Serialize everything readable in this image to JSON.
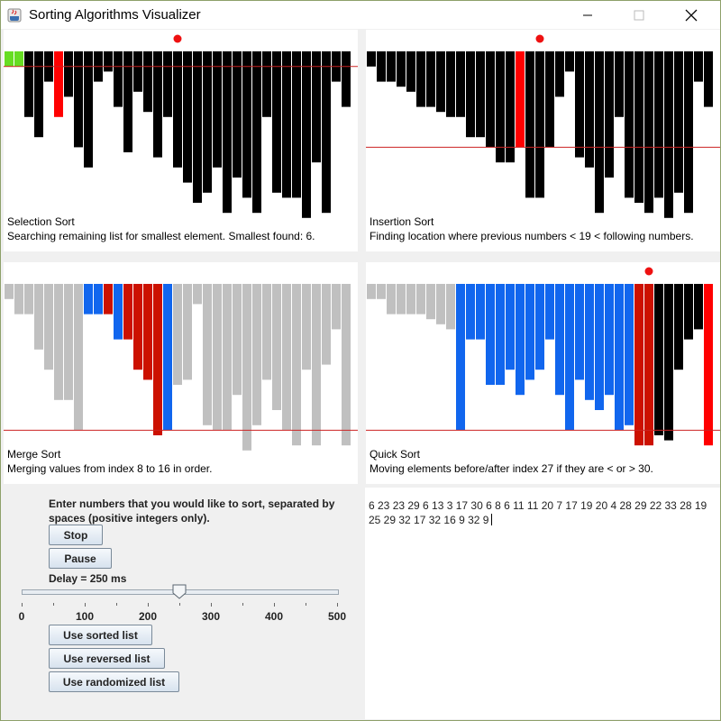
{
  "window": {
    "title": "Sorting Algorithms Visualizer",
    "icon": "java-app-icon",
    "buttons": [
      "minimize-icon",
      "maximize-icon",
      "close-icon"
    ]
  },
  "panels": [
    {
      "title": "Selection Sort",
      "description": "Searching remaining list for smallest element. Smallest found: 6."
    },
    {
      "title": "Insertion Sort",
      "description": "Finding location where previous numbers < 19 < following numbers."
    },
    {
      "title": "Merge Sort",
      "description": "Merging values from index 8 to 16 in order."
    },
    {
      "title": "Quick Sort",
      "description": "Moving elements before/after index 27 if they are < or > 30."
    }
  ],
  "colors": {
    "default": "#000000",
    "highlight": "#ff0000",
    "sorted": "#66dd22",
    "inactive": "#c0c0c0",
    "active_blue": "#1166ee",
    "active_red": "#cc1100",
    "marker": "#ee1111",
    "line": "#cc2222"
  },
  "chart_data": [
    {
      "type": "bar",
      "title": "Selection Sort",
      "values": [
        3,
        3,
        13,
        17,
        6,
        13,
        9,
        19,
        23,
        6,
        4,
        11,
        20,
        8,
        12,
        21,
        13,
        23,
        26,
        30,
        28,
        23,
        32,
        25,
        29,
        32,
        13,
        28,
        29,
        29,
        33,
        22,
        32,
        6,
        11
      ],
      "colors": [
        "sorted",
        "sorted",
        "default",
        "default",
        "default",
        "highlight",
        "default",
        "default",
        "default",
        "default",
        "default",
        "default",
        "default",
        "default",
        "default",
        "default",
        "default",
        "default",
        "default",
        "default",
        "default",
        "default",
        "default",
        "default",
        "default",
        "default",
        "default",
        "default",
        "default",
        "default",
        "default",
        "default",
        "default",
        "default",
        "default"
      ],
      "marker_index": 17,
      "line_value": 3
    },
    {
      "type": "bar",
      "title": "Insertion Sort",
      "values": [
        3,
        6,
        6,
        7,
        8,
        11,
        11,
        12,
        13,
        13,
        17,
        17,
        19,
        22,
        22,
        19,
        29,
        29,
        19,
        9,
        4,
        21,
        23,
        32,
        25,
        13,
        29,
        30,
        32,
        29,
        33,
        28,
        32,
        6,
        11
      ],
      "colors": [
        "default",
        "default",
        "default",
        "default",
        "default",
        "default",
        "default",
        "default",
        "default",
        "default",
        "default",
        "default",
        "default",
        "default",
        "default",
        "highlight",
        "default",
        "default",
        "default",
        "default",
        "default",
        "default",
        "default",
        "default",
        "default",
        "default",
        "default",
        "default",
        "default",
        "default",
        "default",
        "default",
        "default",
        "default",
        "default"
      ],
      "marker_index": 17,
      "line_value": 19
    },
    {
      "type": "bar",
      "title": "Merge Sort",
      "values": [
        3,
        6,
        6,
        13,
        17,
        23,
        23,
        29,
        6,
        6,
        6,
        11,
        11,
        17,
        19,
        30,
        29,
        20,
        19,
        4,
        28,
        29,
        29,
        22,
        33,
        28,
        19,
        25,
        29,
        32,
        17,
        32,
        16,
        9,
        32
      ],
      "colors": [
        "inactive",
        "inactive",
        "inactive",
        "inactive",
        "inactive",
        "inactive",
        "inactive",
        "inactive",
        "active_blue",
        "active_blue",
        "active_red",
        "active_blue",
        "active_red",
        "active_red",
        "active_red",
        "active_red",
        "active_blue",
        "inactive",
        "inactive",
        "inactive",
        "inactive",
        "inactive",
        "inactive",
        "inactive",
        "inactive",
        "inactive",
        "inactive",
        "inactive",
        "inactive",
        "inactive",
        "inactive",
        "inactive",
        "inactive",
        "inactive",
        "inactive"
      ],
      "line_value": 29
    },
    {
      "type": "bar",
      "title": "Quick Sort",
      "values": [
        3,
        3,
        6,
        6,
        6,
        6,
        7,
        8,
        9,
        29,
        11,
        11,
        20,
        20,
        17,
        22,
        19,
        17,
        11,
        22,
        29,
        19,
        23,
        25,
        22,
        29,
        28,
        32,
        32,
        30,
        31,
        17,
        11,
        9,
        32
      ],
      "colors": [
        "inactive",
        "inactive",
        "inactive",
        "inactive",
        "inactive",
        "inactive",
        "inactive",
        "inactive",
        "inactive",
        "active_blue",
        "active_blue",
        "active_blue",
        "active_blue",
        "active_blue",
        "active_blue",
        "active_blue",
        "active_blue",
        "active_blue",
        "active_blue",
        "active_blue",
        "active_blue",
        "active_blue",
        "active_blue",
        "active_blue",
        "active_blue",
        "active_blue",
        "active_blue",
        "active_red",
        "active_red",
        "default",
        "default",
        "default",
        "default",
        "default",
        "highlight"
      ],
      "marker_index": 28,
      "line_value": 29
    }
  ],
  "controls": {
    "prompt": "Enter numbers that you would like to sort, separated by spaces (positive integers only).",
    "stop_label": "Stop",
    "pause_label": "Pause",
    "delay_label": "Delay = 250 ms",
    "slider": {
      "min": 0,
      "max": 500,
      "value": 250,
      "ticks": [
        "0",
        "100",
        "200",
        "300",
        "400",
        "500"
      ]
    },
    "sorted_label": "Use sorted list",
    "reversed_label": "Use reversed list",
    "randomized_label": "Use randomized list"
  },
  "input": {
    "text": "6 23 23 29 6 13 3 17 30 6 8 6 11 11 20 7 17 19 20 4 28 29 22 33 28 19 25 29 32 17 32 16 9 32 9"
  }
}
